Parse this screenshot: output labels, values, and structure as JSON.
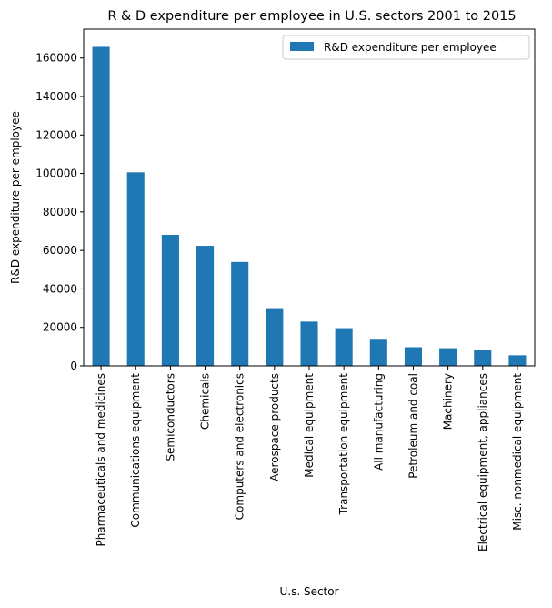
{
  "chart_data": {
    "type": "bar",
    "title": "R & D expenditure per employee in U.S. sectors 2001 to 2015",
    "xlabel": "U.s. Sector",
    "ylabel": "R&D expenditure per employee",
    "ylim": [
      0,
      175000
    ],
    "yticks": [
      0,
      20000,
      40000,
      60000,
      80000,
      100000,
      120000,
      140000,
      160000
    ],
    "ytick_labels": [
      "0",
      "20000",
      "40000",
      "60000",
      "80000",
      "100000",
      "120000",
      "140000",
      "160000"
    ],
    "grid": false,
    "legend_position": "top-right",
    "categories": [
      "Pharmaceuticals and medicines",
      "Communications equipment",
      "Semiconductors",
      "Chemicals",
      "Computers and electronics",
      "Aerospace products",
      "Medical equipment",
      "Transportation equipment",
      "All manufacturing",
      "Petroleum and coal",
      "Machinery",
      "Electrical equipment, appliances",
      "Misc. nonmedical equipment"
    ],
    "series": [
      {
        "name": "R&D expenditure per employee",
        "color": "#1f77b4",
        "values": [
          165800,
          100600,
          68100,
          62400,
          54000,
          30000,
          23000,
          19600,
          13600,
          9700,
          9200,
          8300,
          5500
        ]
      }
    ]
  }
}
